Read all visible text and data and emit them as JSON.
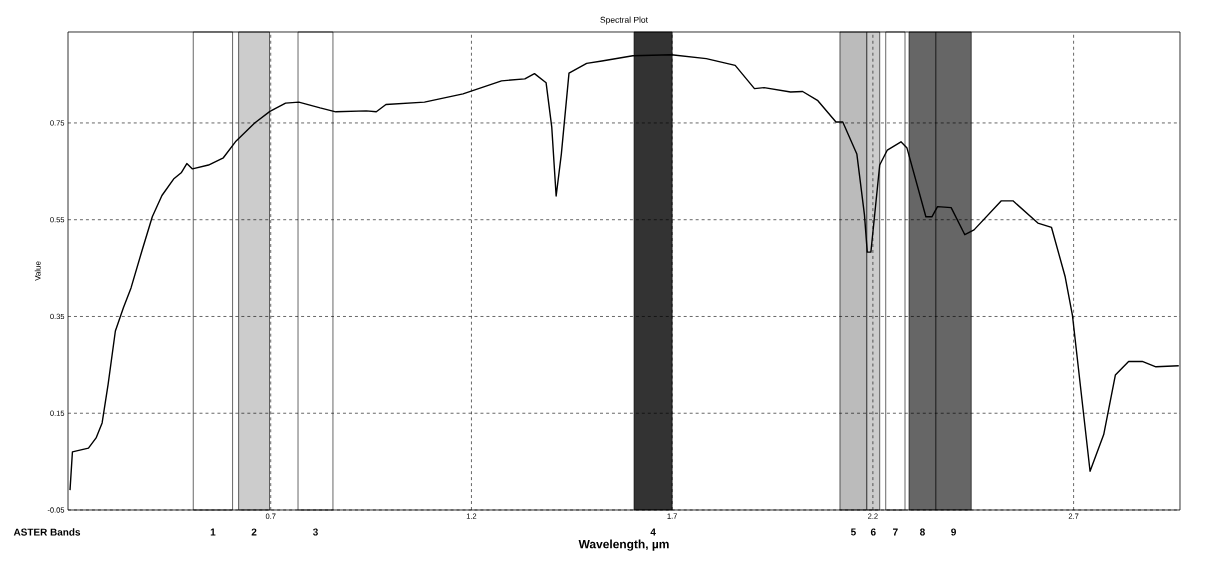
{
  "chart_data": {
    "type": "line",
    "title": "Spectral Plot",
    "xlabel": "Wavelength, µm",
    "ylabel": "Value",
    "xlim": [
      0.195,
      2.965
    ],
    "ylim": [
      -0.05,
      0.938
    ],
    "xticks": [
      0.7,
      1.2,
      1.7,
      2.2,
      2.7
    ],
    "yticks": [
      -0.05,
      0.15,
      0.35,
      0.55,
      0.75
    ],
    "grid": true,
    "series": [
      {
        "color": "#000000",
        "x": [
          0.2,
          0.206,
          0.246,
          0.265,
          0.28,
          0.295,
          0.313,
          0.333,
          0.352,
          0.38,
          0.405,
          0.429,
          0.458,
          0.477,
          0.491,
          0.505,
          0.545,
          0.582,
          0.612,
          0.66,
          0.698,
          0.737,
          0.77,
          0.823,
          0.862,
          0.938,
          0.963,
          0.987,
          1.083,
          1.179,
          1.275,
          1.333,
          1.357,
          1.386,
          1.4,
          1.411,
          1.424,
          1.443,
          1.487,
          1.525,
          1.602,
          1.698,
          1.785,
          1.857,
          1.905,
          1.929,
          1.995,
          2.025,
          2.063,
          2.108,
          2.125,
          2.16,
          2.179,
          2.186,
          2.195,
          2.217,
          2.236,
          2.27,
          2.285,
          2.332,
          2.347,
          2.361,
          2.395,
          2.429,
          2.452,
          2.52,
          2.549,
          2.611,
          2.645,
          2.679,
          2.697,
          2.741,
          2.775,
          2.804,
          2.837,
          2.871,
          2.905,
          2.962
        ],
        "values": [
          -0.009,
          0.07,
          0.078,
          0.099,
          0.13,
          0.21,
          0.32,
          0.368,
          0.409,
          0.488,
          0.556,
          0.6,
          0.634,
          0.647,
          0.666,
          0.655,
          0.663,
          0.678,
          0.711,
          0.75,
          0.774,
          0.791,
          0.793,
          0.781,
          0.773,
          0.775,
          0.773,
          0.788,
          0.793,
          0.81,
          0.837,
          0.841,
          0.852,
          0.833,
          0.742,
          0.599,
          0.686,
          0.853,
          0.873,
          0.878,
          0.889,
          0.891,
          0.883,
          0.869,
          0.821,
          0.823,
          0.814,
          0.815,
          0.796,
          0.752,
          0.752,
          0.686,
          0.56,
          0.483,
          0.483,
          0.663,
          0.694,
          0.711,
          0.698,
          0.556,
          0.556,
          0.577,
          0.575,
          0.519,
          0.529,
          0.589,
          0.589,
          0.543,
          0.534,
          0.432,
          0.353,
          0.03,
          0.106,
          0.229,
          0.257,
          0.257,
          0.246,
          0.248
        ]
      }
    ],
    "bands": [
      {
        "axis": "x",
        "from": 0.507,
        "to": 0.605,
        "label": "1",
        "color": "#ffffff"
      },
      {
        "axis": "x",
        "from": 0.62,
        "to": 0.697,
        "label": "2",
        "color": "#cccccc"
      },
      {
        "axis": "x",
        "from": 0.768,
        "to": 0.855,
        "label": "3",
        "color": "#ffffff"
      },
      {
        "axis": "x",
        "from": 1.605,
        "to": 1.7,
        "label": "4",
        "color": "#333333"
      },
      {
        "axis": "x",
        "from": 2.118,
        "to": 2.185,
        "label": "5",
        "color": "#bbbbbb"
      },
      {
        "axis": "x",
        "from": 2.185,
        "to": 2.217,
        "label": "6",
        "color": "#cccccc"
      },
      {
        "axis": "x",
        "from": 2.232,
        "to": 2.28,
        "label": "7",
        "color": "#ffffff"
      },
      {
        "axis": "x",
        "from": 2.29,
        "to": 2.357,
        "label": "8",
        "color": "#666666"
      },
      {
        "axis": "x",
        "from": 2.357,
        "to": 2.445,
        "label": "9",
        "color": "#666666"
      }
    ],
    "annotations": [
      "ASTER Bands"
    ]
  }
}
